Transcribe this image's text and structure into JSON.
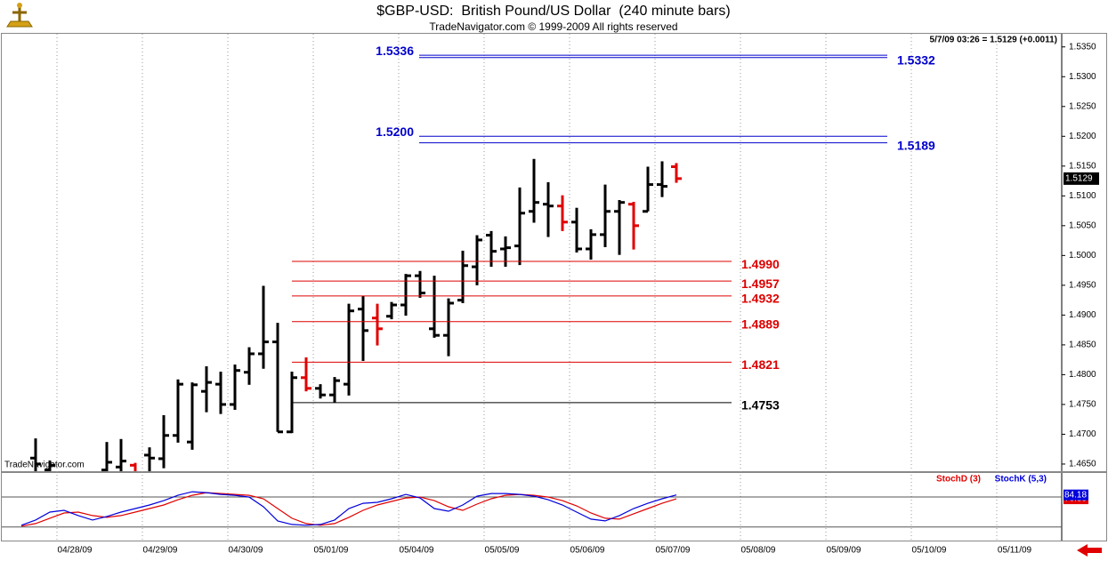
{
  "chart_data": [
    {
      "type": "ohlc",
      "title": "$GBP-USD:  British Pound/US Dollar  (240 minute bars)",
      "subtitle": "TradeNavigator.com © 1999-2009 All rights reserved",
      "info": "5/7/09 03:26 = 1.5129 (+0.0011)",
      "watermark": "TradeNavigator.com",
      "x": [
        0,
        1,
        5,
        6,
        7,
        8,
        9,
        10,
        11,
        12,
        13,
        14,
        15,
        16,
        17,
        18,
        19,
        20,
        21,
        22,
        23,
        24,
        25,
        26,
        27,
        28,
        29,
        30,
        31,
        32,
        33,
        34,
        35,
        36,
        37,
        38,
        39,
        40,
        41,
        42,
        43,
        44,
        45
      ],
      "open": [
        1.466,
        1.464,
        1.464,
        1.4645,
        1.4648,
        1.4665,
        1.4659,
        1.4698,
        1.4687,
        1.4772,
        1.4784,
        1.475,
        1.4804,
        1.4835,
        1.4855,
        1.4704,
        1.4795,
        1.4777,
        1.4766,
        1.4784,
        1.491,
        1.4895,
        1.4898,
        1.4917,
        1.4966,
        1.4877,
        1.4866,
        1.4925,
        1.4981,
        1.5034,
        1.5011,
        1.5016,
        1.5074,
        1.5086,
        1.5083,
        1.5056,
        1.5011,
        1.5035,
        1.5074,
        1.5086,
        1.5074,
        1.5119,
        1.5149
      ],
      "high": [
        1.4693,
        1.4656,
        1.4687,
        1.4692,
        1.4652,
        1.4678,
        1.4732,
        1.4792,
        1.4787,
        1.4814,
        1.4805,
        1.4817,
        1.4846,
        1.4949,
        1.4887,
        1.4805,
        1.4829,
        1.4784,
        1.4796,
        1.4919,
        1.4932,
        1.4919,
        1.4922,
        1.4969,
        1.4974,
        1.4966,
        1.4928,
        1.5008,
        1.5034,
        1.5041,
        1.5032,
        1.5114,
        1.5162,
        1.5123,
        1.5101,
        1.508,
        1.5044,
        1.5119,
        1.5093,
        1.509,
        1.5149,
        1.5158,
        1.5155
      ],
      "low": [
        1.462,
        1.462,
        1.462,
        1.462,
        1.462,
        1.463,
        1.4643,
        1.4686,
        1.4674,
        1.4737,
        1.4734,
        1.4741,
        1.4783,
        1.481,
        1.4704,
        1.4702,
        1.4772,
        1.476,
        1.4753,
        1.4765,
        1.4823,
        1.4849,
        1.4893,
        1.4899,
        1.4929,
        1.4862,
        1.4831,
        1.492,
        1.495,
        1.4981,
        1.4981,
        1.4984,
        1.5055,
        1.5031,
        1.5041,
        1.5005,
        1.4993,
        1.5014,
        1.5001,
        1.501,
        1.5074,
        1.5098,
        1.5122
      ],
      "close": [
        1.465,
        1.4648,
        1.4653,
        1.4655,
        1.463,
        1.466,
        1.4698,
        1.4784,
        1.4783,
        1.4787,
        1.475,
        1.4807,
        1.4835,
        1.4855,
        1.4704,
        1.4795,
        1.4777,
        1.4766,
        1.479,
        1.4907,
        1.4874,
        1.4877,
        1.4917,
        1.4966,
        1.4937,
        1.4866,
        1.492,
        1.4983,
        1.5026,
        1.5007,
        1.5013,
        1.5071,
        1.5089,
        1.5083,
        1.5056,
        1.5011,
        1.5035,
        1.5074,
        1.5089,
        1.505,
        1.5119,
        1.5116,
        1.5129
      ],
      "colors": [
        "#000000",
        "#000000",
        "#000000",
        "#000000",
        "#e00000",
        "#000000",
        "#000000",
        "#000000",
        "#000000",
        "#000000",
        "#000000",
        "#000000",
        "#000000",
        "#000000",
        "#000000",
        "#000000",
        "#e00000",
        "#000000",
        "#000000",
        "#000000",
        "#000000",
        "#e00000",
        "#000000",
        "#000000",
        "#000000",
        "#000000",
        "#000000",
        "#000000",
        "#000000",
        "#000000",
        "#000000",
        "#000000",
        "#000000",
        "#000000",
        "#e00000",
        "#000000",
        "#000000",
        "#000000",
        "#000000",
        "#e00000",
        "#000000",
        "#000000",
        "#e00000"
      ],
      "xlim": [
        -2.375,
        72.0625
      ],
      "xticks": [
        {
          "value": 1.5,
          "label": "04/28/09"
        },
        {
          "value": 7.5,
          "label": "04/29/09"
        },
        {
          "value": 13.5,
          "label": "04/30/09"
        },
        {
          "value": 19.5,
          "label": "05/01/09"
        },
        {
          "value": 25.5,
          "label": "05/04/09"
        },
        {
          "value": 31.5,
          "label": "05/05/09"
        },
        {
          "value": 37.5,
          "label": "05/06/09"
        },
        {
          "value": 43.5,
          "label": "05/07/09"
        },
        {
          "value": 49.5,
          "label": "05/08/09"
        },
        {
          "value": 55.5,
          "label": "05/09/09"
        },
        {
          "value": 61.5,
          "label": "05/10/09"
        },
        {
          "value": 67.5,
          "label": "05/11/09"
        }
      ],
      "ylim": [
        1.4638,
        1.5372
      ],
      "yticks": [
        {
          "value": 1.465,
          "label": "1.4650"
        },
        {
          "value": 1.47,
          "label": "1.4700"
        },
        {
          "value": 1.475,
          "label": "1.4750"
        },
        {
          "value": 1.48,
          "label": "1.4800"
        },
        {
          "value": 1.485,
          "label": "1.4850"
        },
        {
          "value": 1.49,
          "label": "1.4900"
        },
        {
          "value": 1.495,
          "label": "1.4950"
        },
        {
          "value": 1.5,
          "label": "1.5000"
        },
        {
          "value": 1.505,
          "label": "1.5050"
        },
        {
          "value": 1.51,
          "label": "1.5100"
        },
        {
          "value": 1.515,
          "label": "1.5150"
        },
        {
          "value": 1.52,
          "label": "1.5200"
        },
        {
          "value": 1.525,
          "label": "1.5250"
        },
        {
          "value": 1.53,
          "label": "1.5300"
        },
        {
          "value": 1.535,
          "label": "1.5350"
        }
      ],
      "last": 1.5129,
      "last_label": "1.5129",
      "levels": [
        {
          "value": 1.5336,
          "label": "1.5336",
          "color": "#0000cc",
          "side": "left"
        },
        {
          "value": 1.5332,
          "label": "1.5332",
          "color": "#0000cc",
          "side": "right"
        },
        {
          "value": 1.52,
          "label": "1.5200",
          "color": "#0000cc",
          "side": "left"
        },
        {
          "value": 1.5189,
          "label": "1.5189",
          "color": "#0000cc",
          "side": "right"
        },
        {
          "value": 1.499,
          "label": "1.4990",
          "color": "#dd0000",
          "side": "right"
        },
        {
          "value": 1.4957,
          "label": "1.4957",
          "color": "#dd0000",
          "side": "right"
        },
        {
          "value": 1.4932,
          "label": "1.4932",
          "color": "#dd0000",
          "side": "right"
        },
        {
          "value": 1.4889,
          "label": "1.4889",
          "color": "#dd0000",
          "side": "right"
        },
        {
          "value": 1.4821,
          "label": "1.4821",
          "color": "#dd0000",
          "side": "right"
        },
        {
          "value": 1.4753,
          "label": "1.4753",
          "color": "#000000",
          "side": "right"
        }
      ]
    },
    {
      "type": "line",
      "x": [
        -1,
        0,
        1,
        2,
        3,
        4,
        5,
        6,
        7,
        8,
        9,
        10,
        11,
        12,
        13,
        14,
        15,
        16,
        17,
        18,
        19,
        20,
        21,
        22,
        23,
        24,
        25,
        26,
        27,
        28,
        29,
        30,
        31,
        32,
        33,
        34,
        35,
        36,
        37,
        38,
        39,
        40,
        41,
        42,
        43,
        44,
        45
      ],
      "series": [
        {
          "name": "StochD (3)",
          "color": "#e00000",
          "values": [
            21.7,
            27,
            37.6,
            48.1,
            49.9,
            42.9,
            39.3,
            42.9,
            49.9,
            57,
            64,
            74.6,
            83.4,
            88.7,
            87,
            85.2,
            83.4,
            76.4,
            57,
            37.6,
            27,
            23.5,
            27,
            39.3,
            53.4,
            64,
            71.1,
            78.1,
            79.9,
            72.8,
            60.5,
            53.4,
            65.8,
            76.4,
            83.4,
            85.2,
            83.4,
            79.9,
            72.8,
            62.2,
            48.1,
            37.6,
            35.8,
            46.4,
            57,
            67.5,
            76.39
          ]
        },
        {
          "name": "StochK (5,3)",
          "color": "#0000dd",
          "values": [
            23.5,
            34,
            49.9,
            53.4,
            42.9,
            34,
            41.1,
            49.9,
            57,
            64,
            72.8,
            83.4,
            90.5,
            88.7,
            85.2,
            83.4,
            79.9,
            60.5,
            32.3,
            25.2,
            23.5,
            25.2,
            34,
            57,
            67.5,
            69.3,
            76.4,
            85.2,
            78.1,
            57,
            51.6,
            64,
            81.7,
            87,
            87,
            85.2,
            81.7,
            74.6,
            64,
            49.9,
            35.8,
            32.3,
            42.9,
            57,
            67.5,
            76.4,
            84.18
          ]
        }
      ],
      "ylim": [
        -7,
        128
      ],
      "levels": [
        20,
        80
      ]
    }
  ]
}
